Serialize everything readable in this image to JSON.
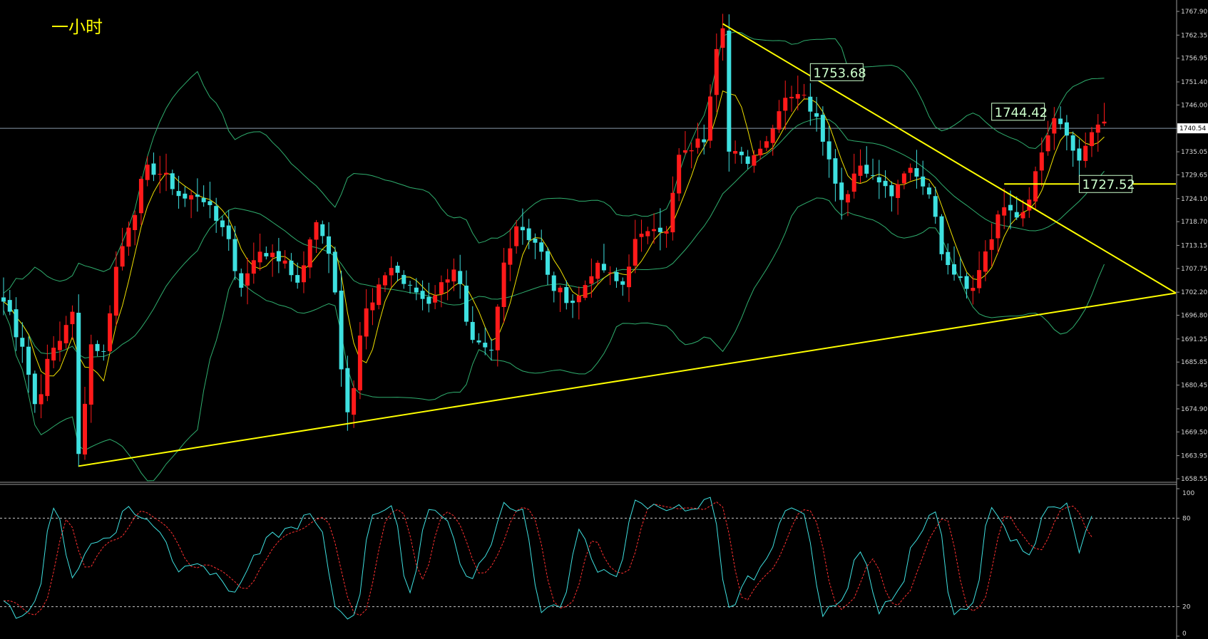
{
  "chart_data": {
    "type": "candlestick",
    "title": "一小时",
    "price_axis": {
      "ylim": [
        1658.55,
        1767.9
      ],
      "ticks": [
        "1767.90",
        "1762.35",
        "1756.95",
        "1751.40",
        "1746.00",
        "1740.54",
        "1735.05",
        "1729.65",
        "1724.10",
        "1718.70",
        "1713.15",
        "1707.75",
        "1702.20",
        "1696.80",
        "1691.25",
        "1685.85",
        "1680.45",
        "1674.90",
        "1669.50",
        "1663.95",
        "1658.55"
      ],
      "current_price": "1740.54",
      "current_price_value": 1740.54
    },
    "oscillator_axis": {
      "ylim": [
        0,
        100
      ],
      "ticks": [
        "100",
        "80",
        "20",
        "0"
      ],
      "levels": [
        80,
        20
      ]
    },
    "annotations": [
      {
        "label": "1753.68",
        "value": 1753.68
      },
      {
        "label": "1744.42",
        "value": 1744.42
      },
      {
        "label": "1727.52",
        "value": 1727.52
      }
    ],
    "trendlines": [
      {
        "name": "lower-support",
        "from": {
          "bar": 12,
          "price": 1661.5
        },
        "to": {
          "bar": 188,
          "price": 1702.0
        }
      },
      {
        "name": "upper-resistance",
        "from": {
          "bar": 115,
          "price": 1765.0
        },
        "to": {
          "bar": 188,
          "price": 1702.0
        }
      }
    ],
    "horizontal_levels": [
      {
        "price": 1727.52,
        "from_bar": 160,
        "to_bar": 188
      }
    ],
    "bar_count": 188,
    "price_keypoints": [
      [
        0,
        1700
      ],
      [
        3,
        1690
      ],
      [
        5,
        1676
      ],
      [
        8,
        1689
      ],
      [
        11,
        1697
      ],
      [
        12,
        1664
      ],
      [
        14,
        1690
      ],
      [
        16,
        1688
      ],
      [
        18,
        1708
      ],
      [
        20,
        1718
      ],
      [
        23,
        1731
      ],
      [
        25,
        1730
      ],
      [
        29,
        1724
      ],
      [
        31,
        1725
      ],
      [
        35,
        1718
      ],
      [
        38,
        1704
      ],
      [
        41,
        1712
      ],
      [
        44,
        1710
      ],
      [
        47,
        1705
      ],
      [
        50,
        1718
      ],
      [
        52,
        1712
      ],
      [
        55,
        1675
      ],
      [
        58,
        1698
      ],
      [
        62,
        1708
      ],
      [
        65,
        1703
      ],
      [
        68,
        1700
      ],
      [
        70,
        1704
      ],
      [
        72,
        1708
      ],
      [
        75,
        1690
      ],
      [
        78,
        1688
      ],
      [
        80,
        1709
      ],
      [
        82,
        1718
      ],
      [
        85,
        1714
      ],
      [
        88,
        1703
      ],
      [
        91,
        1700
      ],
      [
        95,
        1708
      ],
      [
        99,
        1704
      ],
      [
        101,
        1714
      ],
      [
        104,
        1718
      ],
      [
        106,
        1716
      ],
      [
        108,
        1734
      ],
      [
        112,
        1738
      ],
      [
        114,
        1760
      ],
      [
        115,
        1765
      ],
      [
        116,
        1735
      ],
      [
        119,
        1733
      ],
      [
        122,
        1738
      ],
      [
        125,
        1748
      ],
      [
        127,
        1749
      ],
      [
        130,
        1744
      ],
      [
        132,
        1733
      ],
      [
        134,
        1724
      ],
      [
        137,
        1732
      ],
      [
        140,
        1728
      ],
      [
        142,
        1725
      ],
      [
        145,
        1731
      ],
      [
        148,
        1726
      ],
      [
        150,
        1712
      ],
      [
        152,
        1707
      ],
      [
        155,
        1703
      ],
      [
        157,
        1712
      ],
      [
        160,
        1722
      ],
      [
        163,
        1720
      ],
      [
        166,
        1734
      ],
      [
        168,
        1743
      ],
      [
        170,
        1738
      ],
      [
        172,
        1733
      ],
      [
        174,
        1739
      ],
      [
        176,
        1742
      ]
    ],
    "stoch_keypoints": [
      [
        0,
        22
      ],
      [
        2,
        14
      ],
      [
        5,
        22
      ],
      [
        8,
        88
      ],
      [
        11,
        42
      ],
      [
        14,
        62
      ],
      [
        17,
        68
      ],
      [
        20,
        88
      ],
      [
        22,
        80
      ],
      [
        25,
        72
      ],
      [
        28,
        45
      ],
      [
        31,
        52
      ],
      [
        34,
        40
      ],
      [
        37,
        30
      ],
      [
        40,
        52
      ],
      [
        43,
        68
      ],
      [
        46,
        73
      ],
      [
        49,
        82
      ],
      [
        51,
        68
      ],
      [
        53,
        20
      ],
      [
        56,
        12
      ],
      [
        59,
        84
      ],
      [
        62,
        86
      ],
      [
        65,
        30
      ],
      [
        68,
        88
      ],
      [
        71,
        78
      ],
      [
        74,
        38
      ],
      [
        77,
        52
      ],
      [
        80,
        90
      ],
      [
        83,
        85
      ],
      [
        86,
        16
      ],
      [
        89,
        20
      ],
      [
        92,
        70
      ],
      [
        95,
        44
      ],
      [
        98,
        42
      ],
      [
        101,
        90
      ],
      [
        104,
        88
      ],
      [
        107,
        88
      ],
      [
        110,
        84
      ],
      [
        113,
        92
      ],
      [
        116,
        18
      ],
      [
        119,
        38
      ],
      [
        122,
        50
      ],
      [
        125,
        88
      ],
      [
        128,
        82
      ],
      [
        131,
        15
      ],
      [
        134,
        26
      ],
      [
        137,
        60
      ],
      [
        140,
        18
      ],
      [
        143,
        30
      ],
      [
        146,
        66
      ],
      [
        149,
        84
      ],
      [
        152,
        14
      ],
      [
        155,
        20
      ],
      [
        158,
        90
      ],
      [
        161,
        66
      ],
      [
        164,
        58
      ],
      [
        167,
        86
      ],
      [
        170,
        88
      ],
      [
        172,
        58
      ],
      [
        174,
        80
      ]
    ]
  }
}
